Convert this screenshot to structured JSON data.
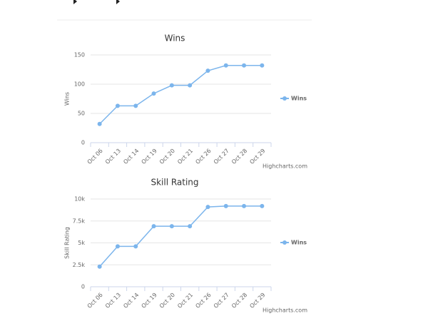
{
  "chart_data": [
    {
      "type": "line",
      "title": "Wins",
      "y_label": "Wins",
      "credits": "Highcharts.com",
      "categories": [
        "Oct 06",
        "Oct 13",
        "Oct 14",
        "Oct 19",
        "Oct 20",
        "Oct 21",
        "Oct 26",
        "Oct 27",
        "Oct 28",
        "Oct 29"
      ],
      "series": [
        {
          "name": "Wins",
          "color": "#7cb5ec",
          "values": [
            32,
            63,
            63,
            84,
            98,
            98,
            123,
            132,
            132,
            132
          ]
        }
      ],
      "ylim": [
        0,
        150
      ],
      "yticks": [
        0,
        50,
        100,
        150
      ],
      "grid": true,
      "legend": "right"
    },
    {
      "type": "line",
      "title": "Skill Rating",
      "y_label": "Skill Rating",
      "credits": "Highcharts.com",
      "categories": [
        "Oct 06",
        "Oct 13",
        "Oct 14",
        "Oct 19",
        "Oct 20",
        "Oct 21",
        "Oct 26",
        "Oct 27",
        "Oct 28",
        "Oct 29"
      ],
      "series": [
        {
          "name": "Wins",
          "color": "#7cb5ec",
          "values": [
            2300,
            4600,
            4600,
            6900,
            6900,
            6900,
            9100,
            9200,
            9200,
            9200
          ]
        }
      ],
      "ylim": [
        0,
        10000
      ],
      "yticks": [
        0,
        {
          "value": 2500,
          "label": "2.5k"
        },
        {
          "value": 5000,
          "label": "5k"
        },
        {
          "value": 7500,
          "label": "7.5k"
        },
        {
          "value": 10000,
          "label": "10k"
        }
      ],
      "grid": true,
      "legend": "right"
    }
  ]
}
